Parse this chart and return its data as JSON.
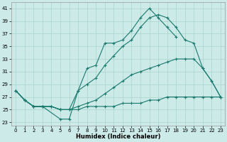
{
  "xlabel": "Humidex (Indice chaleur)",
  "xlim": [
    -0.5,
    23.5
  ],
  "ylim": [
    22.5,
    42
  ],
  "yticks": [
    23,
    25,
    27,
    29,
    31,
    33,
    35,
    37,
    39,
    41
  ],
  "xticks": [
    0,
    1,
    2,
    3,
    4,
    5,
    6,
    7,
    8,
    9,
    10,
    11,
    12,
    13,
    14,
    15,
    16,
    17,
    18,
    19,
    20,
    21,
    22,
    23
  ],
  "bg_color": "#cceae7",
  "line_color": "#1a7a6e",
  "grid_color": "#aad4d0",
  "lines": [
    {
      "x": [
        0,
        1,
        2,
        3,
        5,
        6,
        7,
        8,
        9,
        10,
        11,
        12,
        13,
        14,
        15,
        16,
        17,
        18
      ],
      "y": [
        28,
        26.5,
        25.5,
        25.5,
        23.5,
        23.5,
        28,
        31.5,
        32,
        35.5,
        35.5,
        36,
        37.5,
        39.5,
        41,
        39.5,
        38,
        36.5
      ]
    },
    {
      "x": [
        0,
        1,
        2,
        3,
        4,
        5,
        6,
        7,
        8,
        9,
        10,
        11,
        12,
        13,
        14,
        15,
        16,
        17,
        18,
        19,
        20,
        21,
        22,
        23
      ],
      "y": [
        28,
        26.5,
        25.5,
        25.5,
        25.5,
        25.0,
        25.0,
        28,
        29,
        30,
        32,
        33.5,
        35,
        36,
        38,
        39.5,
        40,
        39.5,
        38,
        36,
        35.5,
        31.5,
        29.5,
        27
      ]
    },
    {
      "x": [
        0,
        1,
        2,
        3,
        4,
        5,
        6,
        7,
        8,
        9,
        10,
        11,
        12,
        13,
        14,
        15,
        16,
        17,
        18,
        19,
        20,
        21,
        22,
        23
      ],
      "y": [
        28,
        26.5,
        25.5,
        25.5,
        25.5,
        25.0,
        25.0,
        25.5,
        26,
        26.5,
        27.5,
        28.5,
        29.5,
        30.5,
        31,
        31.5,
        32,
        32.5,
        33,
        33,
        33,
        31.5,
        29.5,
        27
      ]
    },
    {
      "x": [
        0,
        1,
        2,
        3,
        4,
        5,
        6,
        7,
        8,
        9,
        10,
        11,
        12,
        13,
        14,
        15,
        16,
        17,
        18,
        19,
        20,
        21,
        22,
        23
      ],
      "y": [
        28,
        26.5,
        25.5,
        25.5,
        25.5,
        25.0,
        25.0,
        25.0,
        25.5,
        25.5,
        25.5,
        25.5,
        26,
        26,
        26,
        26.5,
        26.5,
        27,
        27,
        27,
        27,
        27,
        27,
        27
      ]
    }
  ]
}
